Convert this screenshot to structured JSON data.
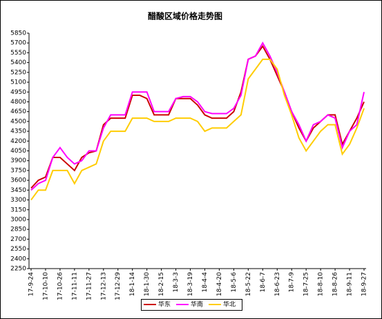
{
  "chart_data": {
    "type": "line",
    "title": "醋酸区域价格走势图",
    "categories": [
      "17-9-24",
      null,
      "17-10-10",
      null,
      "17-10-26",
      null,
      "17-11-11",
      null,
      "17-11-27",
      null,
      "17-12-13",
      null,
      "17-12-29",
      null,
      "18-1-14",
      null,
      "18-1-30",
      null,
      "18-2-15",
      null,
      "18-3-3",
      null,
      "18-3-19",
      null,
      "18-4-4",
      null,
      "18-4-20",
      null,
      "18-5-6",
      null,
      "18-5-22",
      null,
      "18-6-7",
      null,
      "18-6-23",
      null,
      "18-7-9",
      null,
      "18-7-25",
      null,
      "18-8-10",
      null,
      "18-8-26",
      null,
      "18-9-11",
      null,
      "18-9-27"
    ],
    "series": [
      {
        "name": "华东",
        "color": "#cc0000",
        "values": [
          3480,
          3600,
          3650,
          3950,
          3950,
          3850,
          3750,
          3950,
          4020,
          4050,
          4450,
          4550,
          4550,
          4550,
          4900,
          4900,
          4850,
          4600,
          4600,
          4600,
          4850,
          4850,
          4850,
          4750,
          4600,
          4550,
          4550,
          4550,
          4650,
          4950,
          5450,
          5500,
          5650,
          5450,
          5200,
          4950,
          4650,
          4400,
          4200,
          4400,
          4500,
          4600,
          4600,
          4150,
          4350,
          4550,
          4800
        ]
      },
      {
        "name": "华南",
        "color": "#ff00ff",
        "values": [
          3450,
          3550,
          3600,
          3950,
          4100,
          3950,
          3850,
          3900,
          4050,
          4050,
          4400,
          4600,
          4600,
          4600,
          4950,
          4950,
          4950,
          4650,
          4650,
          4650,
          4850,
          4880,
          4880,
          4800,
          4650,
          4620,
          4620,
          4620,
          4700,
          4900,
          5450,
          5500,
          5700,
          5500,
          5250,
          4950,
          4650,
          4450,
          4200,
          4450,
          4500,
          4600,
          4550,
          4100,
          4350,
          4450,
          4950
        ]
      },
      {
        "name": "华北",
        "color": "#ffcc00",
        "values": [
          3300,
          3450,
          3450,
          3750,
          3750,
          3750,
          3550,
          3750,
          3800,
          3850,
          4200,
          4350,
          4350,
          4350,
          4550,
          4550,
          4550,
          4500,
          4500,
          4500,
          4550,
          4550,
          4550,
          4500,
          4350,
          4400,
          4400,
          4400,
          4500,
          4600,
          5150,
          5300,
          5450,
          5450,
          5300,
          4900,
          4600,
          4250,
          4050,
          4200,
          4350,
          4450,
          4450,
          4000,
          4150,
          4400,
          4700
        ]
      }
    ],
    "ylim": [
      2250,
      5850
    ],
    "yticks": [
      2250,
      2400,
      2550,
      2700,
      2850,
      3000,
      3150,
      3300,
      3450,
      3600,
      3750,
      3900,
      4050,
      4200,
      4350,
      4500,
      4650,
      4800,
      4950,
      5100,
      5250,
      5400,
      5550,
      5700,
      5850
    ],
    "legend": "bottom"
  }
}
